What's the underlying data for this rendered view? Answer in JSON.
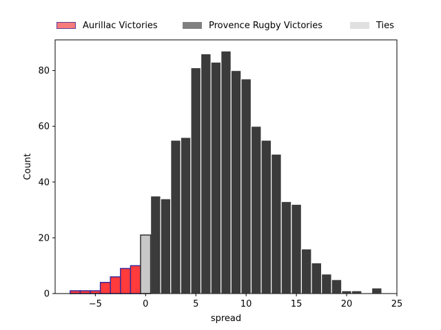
{
  "chart_data": {
    "type": "bar",
    "xlabel": "spread",
    "ylabel": "Count",
    "xlim": [
      -9,
      25
    ],
    "ylim": [
      0,
      91
    ],
    "xticks": [
      -5,
      0,
      5,
      10,
      15,
      20,
      25
    ],
    "yticks": [
      0,
      20,
      40,
      60,
      80
    ],
    "grid": false,
    "legend_position": "top",
    "series": [
      {
        "name": "Aurillac Victories",
        "color": "#ff3b3b",
        "edge_color": "#3a2a9a",
        "bars": [
          {
            "x": -7,
            "count": 1
          },
          {
            "x": -6,
            "count": 1
          },
          {
            "x": -5,
            "count": 1
          },
          {
            "x": -4,
            "count": 4
          },
          {
            "x": -3,
            "count": 6
          },
          {
            "x": -2,
            "count": 9
          },
          {
            "x": -1,
            "count": 10
          }
        ]
      },
      {
        "name": "Provence Rugby Victories",
        "color": "#3b3b3b",
        "edge_color": "#ffffff",
        "bars": [
          {
            "x": 1,
            "count": 35
          },
          {
            "x": 2,
            "count": 34
          },
          {
            "x": 3,
            "count": 55
          },
          {
            "x": 4,
            "count": 56
          },
          {
            "x": 5,
            "count": 81
          },
          {
            "x": 6,
            "count": 86
          },
          {
            "x": 7,
            "count": 83
          },
          {
            "x": 8,
            "count": 87
          },
          {
            "x": 9,
            "count": 80
          },
          {
            "x": 10,
            "count": 77
          },
          {
            "x": 11,
            "count": 60
          },
          {
            "x": 12,
            "count": 55
          },
          {
            "x": 13,
            "count": 50
          },
          {
            "x": 14,
            "count": 33
          },
          {
            "x": 15,
            "count": 32
          },
          {
            "x": 16,
            "count": 16
          },
          {
            "x": 17,
            "count": 11
          },
          {
            "x": 18,
            "count": 7
          },
          {
            "x": 19,
            "count": 5
          },
          {
            "x": 20,
            "count": 1
          },
          {
            "x": 21,
            "count": 1
          },
          {
            "x": 23,
            "count": 2
          }
        ]
      },
      {
        "name": "Ties",
        "color": "#c8c8c8",
        "edge_color": "#333333",
        "bars": [
          {
            "x": 0,
            "count": 21
          }
        ]
      }
    ],
    "legend": [
      {
        "label": "Aurillac Victories",
        "color": "#f77b7b",
        "edge_color": "#5a3a9a"
      },
      {
        "label": "Provence Rugby Victories",
        "color": "#808080",
        "edge_color": "#808080"
      },
      {
        "label": "Ties",
        "color": "#e0e0e0",
        "edge_color": "#e0e0e0"
      }
    ]
  }
}
